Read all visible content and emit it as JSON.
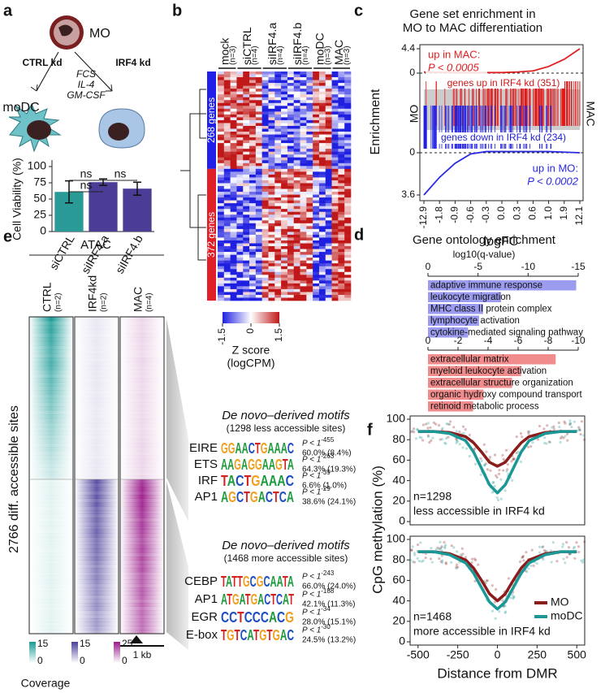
{
  "figure": {
    "panel_labels": [
      "a",
      "b",
      "c",
      "d",
      "e",
      "f"
    ]
  },
  "panel_a_diagram": {
    "cell": "MO",
    "arms": [
      "CTRL kd",
      "IRF4 kd"
    ],
    "conditions": [
      "FCS",
      "IL-4",
      "GM-CSF"
    ],
    "result": "moDC"
  },
  "panel_b": {
    "columns": [
      {
        "name": "mock",
        "n": "(n=3)"
      },
      {
        "name": "siCTRL",
        "n": "(n=4)"
      },
      {
        "name": "siIRF4.a",
        "n": "(n=4)"
      },
      {
        "name": "siIRF4.b",
        "n": "(n=4)"
      },
      {
        "name": "moDC",
        "n": "(n=3)"
      },
      {
        "name": "MAC",
        "n": "(n=3)"
      }
    ],
    "row_groups": [
      "268 genes",
      "372 genes"
    ],
    "colorbar_ticks": [
      -1.5,
      0,
      1.5
    ],
    "colorbar_label": [
      "Z score",
      "(logCPM)"
    ]
  },
  "panel_e": {
    "assay": "ATAC",
    "columns": [
      {
        "name": "CTRL",
        "n": "(n=2)"
      },
      {
        "name": "IRF4kd",
        "n": "(n=2)"
      },
      {
        "name": "MAC",
        "n": "(n=4)"
      }
    ],
    "row_label": "2766 diff. accessible sites",
    "coverage": [
      {
        "max": 15,
        "min": 0
      },
      {
        "max": 15,
        "min": 0
      },
      {
        "max": 25,
        "min": 0
      }
    ],
    "coverage_label": "Coverage",
    "scale_label": "1 kb",
    "motif_sets": [
      {
        "title": "De novo–derived motifs",
        "subtitle": "(1298 less accessible sites)",
        "motifs": [
          {
            "name": "EIRE",
            "logo": "GGAACTGAAAC",
            "p": "P < 1",
            "exponent": "-455",
            "pct": "60.0% (8.4%)"
          },
          {
            "name": "ETS",
            "logo": "AAGAGGAAGTA",
            "p": "P < 1",
            "exponent": "-263",
            "pct": "64.3% (19.3%)"
          },
          {
            "name": "IRF",
            "logo": "TACTGAAAC",
            "p": "P < 1",
            "exponent": "-39",
            "pct": "6.6% (1.0%)"
          },
          {
            "name": "AP1",
            "logo": "AGCTGACTCA",
            "p": "P < 1",
            "exponent": "-29",
            "pct": "38.6% (24.1%)"
          }
        ]
      },
      {
        "title": "De novo–derived motifs",
        "subtitle": "(1468 more accessible sites)",
        "motifs": [
          {
            "name": "CEBP",
            "logo": "TATTGCGCAATA",
            "p": "P < 1",
            "exponent": "-243",
            "pct": "66.0% (24.0%)"
          },
          {
            "name": "AP1",
            "logo": "ATGATGACTCAT",
            "p": "P < 1",
            "exponent": "-188",
            "pct": "42.1% (11.3%)"
          },
          {
            "name": "EGR",
            "logo": "CCTCCCACG",
            "p": "P < 1",
            "exponent": "-34",
            "pct": "28.0% (15.1%)"
          },
          {
            "name": "E-box",
            "logo": "TGTCATGTGAC",
            "p": "P < 1",
            "exponent": "-30",
            "pct": "24.5% (13.2%)"
          }
        ]
      }
    ]
  },
  "chart_data": [
    {
      "type": "bar",
      "ylabel": "Cell Viability (%)",
      "categories": [
        "siCTRL",
        "siIRF4.a",
        "siIRF4.b"
      ],
      "values": [
        61,
        76,
        66
      ],
      "errors": [
        17,
        5,
        10
      ],
      "colors": [
        "#2a9a96",
        "#4b3d96",
        "#4b3d96"
      ],
      "ylim": [
        0,
        100
      ],
      "yticks": [
        0,
        25,
        50,
        75,
        100
      ],
      "significance_labels": [
        "ns",
        "ns",
        "ns"
      ]
    },
    {
      "type": "enrichment",
      "title_lines": [
        "Gene set enrichment in",
        "MO to MAC differentiation"
      ],
      "ylabel": "Enrichment",
      "xlabel": "logFC",
      "side_labels": [
        "MO",
        "MAC"
      ],
      "categories": [
        "-12.9",
        "-1.8",
        "-0.9",
        "-0.6",
        "-0.3",
        "0.0",
        "0.3",
        "0.6",
        "1.0",
        "1.9",
        "12.1"
      ],
      "barcode_labels": [
        "genes up in IRF4 kd (351)",
        "genes down in IRF4 kd (234)"
      ],
      "ylim": [
        0,
        4.4
      ],
      "yticks": [
        0,
        4.4
      ],
      "y2lim": [
        0,
        3.6
      ],
      "y2ticks": [
        0,
        3.6
      ],
      "series": [
        {
          "name": "up in MAC:",
          "pvalue": "P < 0.0005",
          "color": "#e02020",
          "values": [
            0.2,
            0.15,
            0.1,
            0.1,
            0.1,
            0.1,
            0.2,
            0.4,
            1.2,
            2.5,
            4.4
          ]
        },
        {
          "name": "up in MO:",
          "pvalue": "P < 0.0002",
          "color": "#2a2ae0",
          "axis": "y2",
          "values": [
            3.6,
            2.1,
            0.9,
            0.1,
            -0.1,
            -0.1,
            -0.1,
            -0.1,
            -0.1,
            -0.05,
            0
          ]
        }
      ]
    },
    {
      "type": "hbar",
      "title": "Gene ontology enrichment",
      "xlabel": "log10(q-value)",
      "color": "#9b9bf0",
      "categories": [
        "adaptive immune response",
        "leukocyte migration",
        "MHC class II protein complex",
        "lymphocyte activation",
        "cytokine-mediated signaling pathway"
      ],
      "values": [
        -14.8,
        -7.3,
        -5.5,
        -5.1,
        -4.0
      ],
      "xlim": [
        0,
        -15
      ],
      "xticks": [
        0,
        -5,
        -10,
        -15
      ]
    },
    {
      "type": "hbar",
      "color": "#f08c8c",
      "categories": [
        "extracellular matrix",
        "myeloid leukocyte activation",
        "extracellular structure organization",
        "organic hydroxy compound transport",
        "retinoid metabolic process"
      ],
      "values": [
        -8.5,
        -6.2,
        -5.6,
        -3.7,
        -3.0
      ],
      "xlim": [
        0,
        -10
      ],
      "xticks": [
        0,
        -2,
        -4,
        -6,
        -8,
        -10
      ]
    },
    {
      "type": "line",
      "annotations": [
        "n=1298",
        "less accessible in IRF4 kd"
      ],
      "x": [
        -500,
        -400,
        -300,
        -200,
        -150,
        -100,
        -50,
        0,
        50,
        100,
        150,
        200,
        300,
        400,
        500
      ],
      "series": [
        {
          "color": "#8b1c1c",
          "values": [
            88,
            88,
            87,
            83,
            77,
            68,
            58,
            54,
            58,
            68,
            77,
            83,
            87,
            88,
            88
          ]
        },
        {
          "color": "#1b9896",
          "values": [
            88,
            88,
            86,
            79,
            68,
            52,
            36,
            28,
            36,
            52,
            68,
            79,
            86,
            88,
            88
          ]
        }
      ],
      "xlim": [
        -550,
        550
      ],
      "ylim": [
        0,
        100
      ],
      "yticks": [
        0,
        20,
        40,
        60,
        80,
        100
      ]
    },
    {
      "type": "line",
      "annotations": [
        "n=1468",
        "more accessible in IRF4 kd"
      ],
      "xlabel": "Distance from DMR",
      "ylabel": "CpG methylation (%)",
      "x": [
        -500,
        -400,
        -300,
        -200,
        -150,
        -100,
        -50,
        0,
        50,
        100,
        150,
        200,
        300,
        400,
        500
      ],
      "series": [
        {
          "name": "MO",
          "color": "#8b1c1c",
          "values": [
            88,
            88,
            86,
            80,
            72,
            60,
            47,
            40,
            47,
            60,
            72,
            80,
            86,
            88,
            88
          ]
        },
        {
          "name": "moDC",
          "color": "#1b9896",
          "values": [
            88,
            88,
            85,
            77,
            67,
            53,
            39,
            32,
            39,
            53,
            67,
            77,
            85,
            88,
            88
          ]
        }
      ],
      "xlim": [
        -550,
        550
      ],
      "ylim": [
        0,
        100
      ],
      "yticks": [
        0,
        20,
        40,
        60,
        80,
        100
      ],
      "xticks": [
        -500,
        -250,
        0,
        250,
        500
      ],
      "legend": "lower right"
    }
  ]
}
